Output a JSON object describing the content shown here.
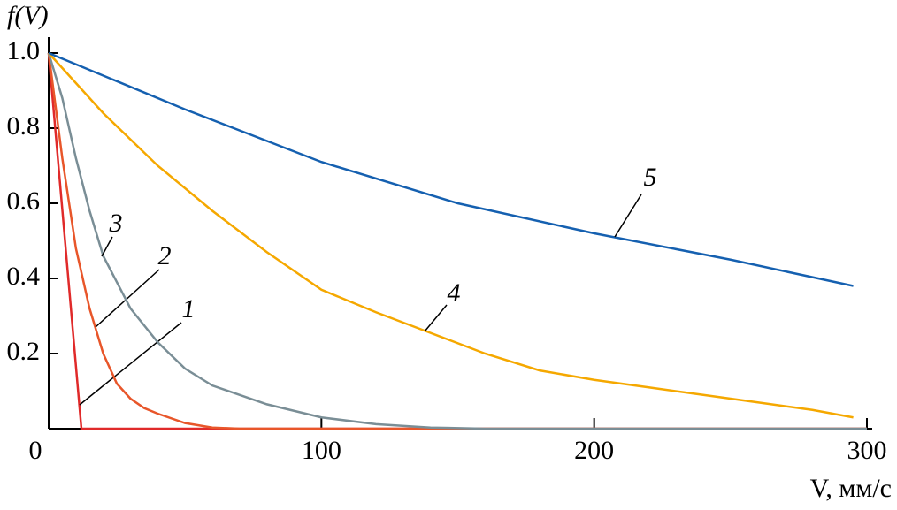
{
  "chart_data": {
    "type": "line",
    "y_label": "f(V)",
    "x_label": "V, мм/с",
    "xlim": [
      0,
      300
    ],
    "ylim": [
      0,
      1
    ],
    "xticks": [
      0,
      100,
      200,
      300
    ],
    "yticks": [
      0.2,
      0.4,
      0.6,
      0.8,
      {
        "value": 1,
        "label": "1.0"
      }
    ],
    "series": [
      {
        "name": "1",
        "color": "#e02a2a",
        "x": [
          0,
          12,
          300
        ],
        "values": [
          1,
          0,
          0
        ]
      },
      {
        "name": "2",
        "color": "#e8562a",
        "x": [
          0,
          5,
          10,
          15,
          20,
          25,
          30,
          35,
          40,
          50,
          60,
          70,
          300
        ],
        "values": [
          1,
          0.72,
          0.48,
          0.32,
          0.2,
          0.12,
          0.08,
          0.055,
          0.04,
          0.015,
          0.003,
          0,
          0
        ]
      },
      {
        "name": "3",
        "color": "#7a8e96",
        "x": [
          0,
          5,
          10,
          15,
          20,
          30,
          40,
          50,
          60,
          80,
          100,
          120,
          140,
          160,
          300
        ],
        "values": [
          1,
          0.88,
          0.72,
          0.58,
          0.46,
          0.32,
          0.23,
          0.16,
          0.115,
          0.065,
          0.03,
          0.012,
          0.003,
          0,
          0
        ]
      },
      {
        "name": "4",
        "color": "#f5a800",
        "x": [
          0,
          20,
          40,
          60,
          80,
          100,
          120,
          140,
          160,
          180,
          200,
          220,
          240,
          260,
          280,
          295
        ],
        "values": [
          1,
          0.84,
          0.7,
          0.58,
          0.47,
          0.37,
          0.31,
          0.255,
          0.2,
          0.155,
          0.13,
          0.11,
          0.09,
          0.07,
          0.05,
          0.03
        ]
      },
      {
        "name": "5",
        "color": "#1560b0",
        "x": [
          0,
          50,
          100,
          150,
          200,
          250,
          295
        ],
        "values": [
          1,
          0.85,
          0.71,
          0.6,
          0.52,
          0.45,
          0.38
        ]
      }
    ]
  }
}
